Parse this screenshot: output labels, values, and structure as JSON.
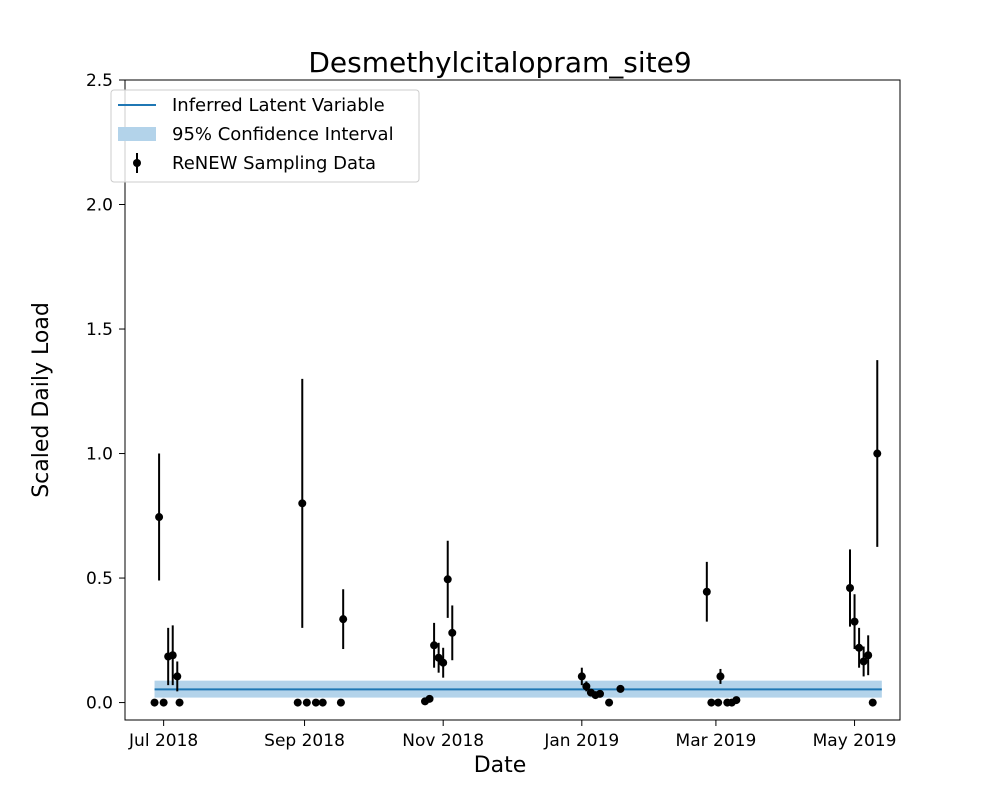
{
  "chart_data": {
    "type": "scatter",
    "title": "Desmethylcitalopram_site9",
    "xlabel": "Date",
    "ylabel": "Scaled Daily Load",
    "x_range_days": [
      -5,
      184
    ],
    "ylim": [
      -0.07,
      2.5
    ],
    "x_ticks": [
      {
        "label": "Jul 2018",
        "day": 0
      },
      {
        "label": "Sep 2018",
        "day": 62
      },
      {
        "label": "Nov 2018",
        "day": 123
      },
      {
        "label": "Jan 2019",
        "day": 184
      }
    ],
    "x_ticks_extra": [
      {
        "label": "Mar 2019",
        "day": 243
      },
      {
        "label": "May 2019",
        "day": 304
      }
    ],
    "y_ticks": [
      {
        "label": "0.0",
        "value": 0.0
      },
      {
        "label": "0.5",
        "value": 0.5
      },
      {
        "label": "1.0",
        "value": 1.0
      },
      {
        "label": "1.5",
        "value": 1.5
      },
      {
        "label": "2.0",
        "value": 2.0
      },
      {
        "label": "2.5",
        "value": 2.5
      }
    ],
    "legend": {
      "position": "top-left",
      "entries": [
        "Inferred Latent Variable",
        "95% Confidence Interval",
        "ReNEW Sampling Data"
      ]
    },
    "latent": {
      "day_start": -4,
      "day_end": 316,
      "value": 0.053,
      "ci_low": 0.02,
      "ci_high": 0.088
    },
    "colors": {
      "line": "#1f77b4",
      "band": "#b3d3ea",
      "points": "#000000"
    },
    "points": [
      {
        "day": -4,
        "value": 0.0,
        "err": 0
      },
      {
        "day": -2,
        "value": 0.745,
        "err": 0.255
      },
      {
        "day": 0,
        "value": 0.0,
        "err": 0
      },
      {
        "day": 2,
        "value": 0.185,
        "err": 0.115
      },
      {
        "day": 4,
        "value": 0.19,
        "err": 0.12
      },
      {
        "day": 6,
        "value": 0.105,
        "err": 0.06
      },
      {
        "day": 7,
        "value": 0.0,
        "err": 0
      },
      {
        "day": 59,
        "value": 0.0,
        "err": 0
      },
      {
        "day": 61,
        "value": 0.8,
        "err": 0.5
      },
      {
        "day": 63,
        "value": 0.0,
        "err": 0
      },
      {
        "day": 67,
        "value": 0.0,
        "err": 0
      },
      {
        "day": 70,
        "value": 0.0,
        "err": 0
      },
      {
        "day": 78,
        "value": 0.0,
        "err": 0
      },
      {
        "day": 79,
        "value": 0.335,
        "err": 0.12
      },
      {
        "day": 115,
        "value": 0.005,
        "err": 0
      },
      {
        "day": 117,
        "value": 0.015,
        "err": 0
      },
      {
        "day": 119,
        "value": 0.23,
        "err": 0.09
      },
      {
        "day": 121,
        "value": 0.18,
        "err": 0.06
      },
      {
        "day": 123,
        "value": 0.16,
        "err": 0.06
      },
      {
        "day": 125,
        "value": 0.495,
        "err": 0.155
      },
      {
        "day": 127,
        "value": 0.28,
        "err": 0.11
      }
    ],
    "points_extra": [
      {
        "day": 184,
        "value": 0.105,
        "err": 0.035
      },
      {
        "day": 186,
        "value": 0.065,
        "err": 0.02
      },
      {
        "day": 188,
        "value": 0.04,
        "err": 0.01
      },
      {
        "day": 190,
        "value": 0.03,
        "err": 0.01
      },
      {
        "day": 192,
        "value": 0.035,
        "err": 0.01
      },
      {
        "day": 196,
        "value": 0.0,
        "err": 0
      },
      {
        "day": 201,
        "value": 0.055,
        "err": 0.015
      },
      {
        "day": 239,
        "value": 0.445,
        "err": 0.12
      },
      {
        "day": 241,
        "value": 0.0,
        "err": 0
      },
      {
        "day": 244,
        "value": 0.0,
        "err": 0
      },
      {
        "day": 245,
        "value": 0.105,
        "err": 0.03
      },
      {
        "day": 248,
        "value": 0.0,
        "err": 0
      },
      {
        "day": 250,
        "value": 0.0,
        "err": 0
      },
      {
        "day": 252,
        "value": 0.01,
        "err": 0
      },
      {
        "day": 302,
        "value": 0.46,
        "err": 0.155
      },
      {
        "day": 304,
        "value": 0.325,
        "err": 0.11
      },
      {
        "day": 306,
        "value": 0.22,
        "err": 0.08
      },
      {
        "day": 308,
        "value": 0.165,
        "err": 0.06
      },
      {
        "day": 310,
        "value": 0.19,
        "err": 0.08
      },
      {
        "day": 312,
        "value": 0.0,
        "err": 0
      },
      {
        "day": 314,
        "value": 1.0,
        "err": 0.375
      }
    ]
  }
}
